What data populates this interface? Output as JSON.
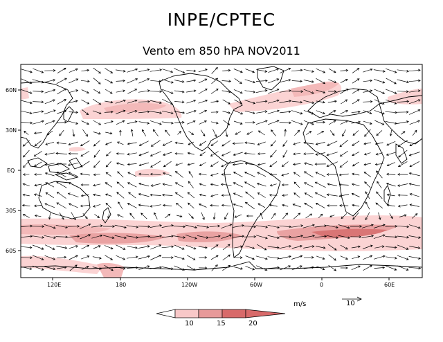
{
  "header": {
    "org": "INPE/CPTEC",
    "subtitle": "Vento em 850 hPA NOV2011"
  },
  "map": {
    "lat_labels": [
      "60N",
      "30N",
      "EQ",
      "30S",
      "60S"
    ],
    "lon_labels": [
      "120E",
      "180",
      "120W",
      "60W",
      "0",
      "60E"
    ]
  },
  "legend": {
    "units": "m/s",
    "reference_vector": "10",
    "thresholds": [
      "10",
      "15",
      "20"
    ],
    "colors": [
      "#ffffff",
      "#f8c8c8",
      "#e89a9a",
      "#d86a6a"
    ]
  },
  "colors": {
    "light": "#fbd3d3",
    "medium": "#e9a2a2",
    "dark": "#d97575"
  }
}
